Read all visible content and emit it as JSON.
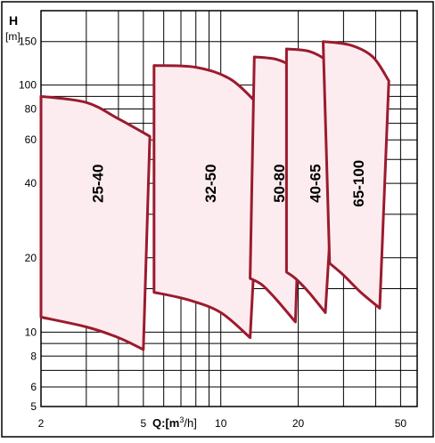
{
  "chart_data": {
    "type": "area",
    "title": "",
    "ylabel_symbol": "H",
    "ylabel_unit": "[m]",
    "xlabel_prefix": "Q:[m",
    "xlabel_sup": "3",
    "xlabel_suffix": "/h]",
    "xscale": "log",
    "yscale": "log",
    "xlim": [
      2,
      58
    ],
    "ylim": [
      5,
      200
    ],
    "grid": true,
    "xticks": [
      2,
      5,
      10,
      20,
      50
    ],
    "xtick_labels": [
      "2",
      "5",
      "10",
      "20",
      "50"
    ],
    "yticks": [
      5,
      6,
      8,
      10,
      20,
      40,
      60,
      80,
      100,
      150
    ],
    "ytick_labels": [
      "5",
      "6",
      "8",
      "10",
      "20",
      "40",
      "60",
      "80",
      "100",
      "150"
    ],
    "fill_color": "#fdecef",
    "edge_color": "#9b1b2e",
    "series": [
      {
        "name": "25-40",
        "top": [
          [
            2.0,
            90
          ],
          [
            3.0,
            85
          ],
          [
            4.0,
            73
          ],
          [
            5.3,
            62
          ]
        ],
        "right": [
          [
            5.3,
            62
          ],
          [
            5.0,
            8.5
          ]
        ],
        "bottom": [
          [
            5.0,
            8.5
          ],
          [
            4.0,
            9.5
          ],
          [
            3.0,
            10.5
          ],
          [
            2.0,
            11.5
          ]
        ]
      },
      {
        "name": "32-50",
        "top": [
          [
            5.5,
            120
          ],
          [
            8.0,
            118
          ],
          [
            11.0,
            105
          ],
          [
            14.5,
            80
          ]
        ],
        "right": [
          [
            14.5,
            80
          ],
          [
            13.0,
            9.5
          ]
        ],
        "bottom": [
          [
            13.0,
            9.5
          ],
          [
            10.0,
            12
          ],
          [
            7.5,
            13.5
          ],
          [
            5.5,
            14.5
          ]
        ]
      },
      {
        "name": "50-80",
        "top": [
          [
            13.5,
            130
          ],
          [
            16.5,
            127
          ],
          [
            19.0,
            118
          ],
          [
            21.0,
            105
          ]
        ],
        "right": [
          [
            21.0,
            105
          ],
          [
            19.5,
            11
          ]
        ],
        "bottom": [
          [
            19.5,
            11
          ],
          [
            16.5,
            13.5
          ],
          [
            14.5,
            15.5
          ],
          [
            13.0,
            16.5
          ]
        ]
      },
      {
        "name": "40-65",
        "top": [
          [
            18.0,
            140
          ],
          [
            22.0,
            137
          ],
          [
            26.0,
            125
          ],
          [
            29.0,
            110
          ]
        ],
        "right": [
          [
            29.0,
            110
          ],
          [
            25.5,
            12
          ]
        ],
        "bottom": [
          [
            25.5,
            12
          ],
          [
            22.0,
            14.5
          ],
          [
            19.5,
            16.5
          ],
          [
            18.0,
            17.5
          ]
        ]
      },
      {
        "name": "65-100",
        "top": [
          [
            25.0,
            150
          ],
          [
            32.0,
            145
          ],
          [
            39.0,
            130
          ],
          [
            45.0,
            104
          ]
        ],
        "right": [
          [
            45.0,
            104
          ],
          [
            41.5,
            12.5
          ]
        ],
        "bottom": [
          [
            41.5,
            12.5
          ],
          [
            35.0,
            14.5
          ],
          [
            30.0,
            17
          ],
          [
            26.5,
            19
          ]
        ]
      }
    ]
  }
}
